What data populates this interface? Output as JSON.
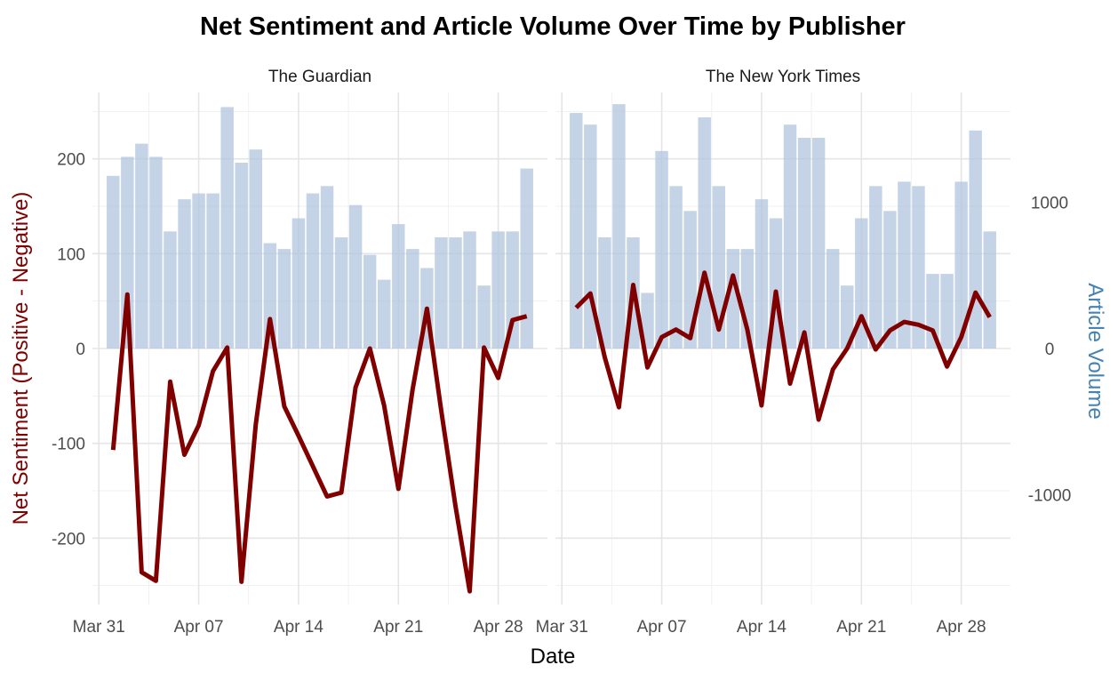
{
  "chart_data": {
    "type": "bar+line",
    "title": "Net Sentiment and Article Volume Over Time by Publisher",
    "xlabel": "Date",
    "ylabel_left": "Net Sentiment (Positive - Negative)",
    "ylabel_right": "Article Volume",
    "x_ticks": [
      "Mar 31",
      "Apr 07",
      "Apr 14",
      "Apr 21",
      "Apr 28"
    ],
    "y_ticks_left": [
      -200,
      -100,
      0,
      100,
      200
    ],
    "y_ticks_right": [
      -1000,
      0,
      1000
    ],
    "ylim_left": [
      -270,
      270
    ],
    "ylim_right": [
      -1750,
      1750
    ],
    "x_dates": [
      "2024-04-01",
      "2024-04-02",
      "2024-04-03",
      "2024-04-04",
      "2024-04-05",
      "2024-04-06",
      "2024-04-07",
      "2024-04-08",
      "2024-04-09",
      "2024-04-10",
      "2024-04-11",
      "2024-04-12",
      "2024-04-13",
      "2024-04-14",
      "2024-04-15",
      "2024-04-16",
      "2024-04-17",
      "2024-04-18",
      "2024-04-19",
      "2024-04-20",
      "2024-04-21",
      "2024-04-22",
      "2024-04-23",
      "2024-04-24",
      "2024-04-25",
      "2024-04-26",
      "2024-04-27",
      "2024-04-28",
      "2024-04-29",
      "2024-04-30"
    ],
    "colors": {
      "bars": "#b0c4de",
      "line": "#800000",
      "left_axis_label": "#800000",
      "right_axis_label": "#4682b4"
    },
    "grid": true,
    "panels": [
      {
        "name": "The Guardian",
        "article_volume": [
          1180,
          1310,
          1400,
          1310,
          800,
          1020,
          1060,
          1060,
          1650,
          1270,
          1360,
          720,
          680,
          890,
          1060,
          1110,
          760,
          980,
          640,
          470,
          850,
          680,
          550,
          760,
          760,
          800,
          430,
          800,
          800,
          1230
        ],
        "net_sentiment": [
          -107,
          57,
          -236,
          -245,
          -35,
          -112,
          -81,
          -24,
          1,
          -246,
          -80,
          31,
          -61,
          -92,
          -124,
          -156,
          -152,
          -41,
          0,
          -60,
          -148,
          -43,
          42,
          -65,
          -166,
          -256,
          1,
          -31,
          30,
          34
        ]
      },
      {
        "name": "The New York Times",
        "article_volume": [
          1610,
          1530,
          760,
          1670,
          760,
          380,
          1350,
          1110,
          940,
          1580,
          1110,
          680,
          680,
          1020,
          890,
          1530,
          1440,
          1440,
          680,
          430,
          890,
          1110,
          940,
          1140,
          1110,
          510,
          510,
          1140,
          1490,
          800
        ],
        "net_sentiment": [
          43,
          58,
          -9,
          -62,
          67,
          -20,
          12,
          20,
          11,
          80,
          20,
          77,
          20,
          -60,
          60,
          -37,
          17,
          -75,
          -22,
          0,
          34,
          -1,
          19,
          28,
          25,
          19,
          -19,
          12,
          59,
          33
        ]
      }
    ]
  }
}
